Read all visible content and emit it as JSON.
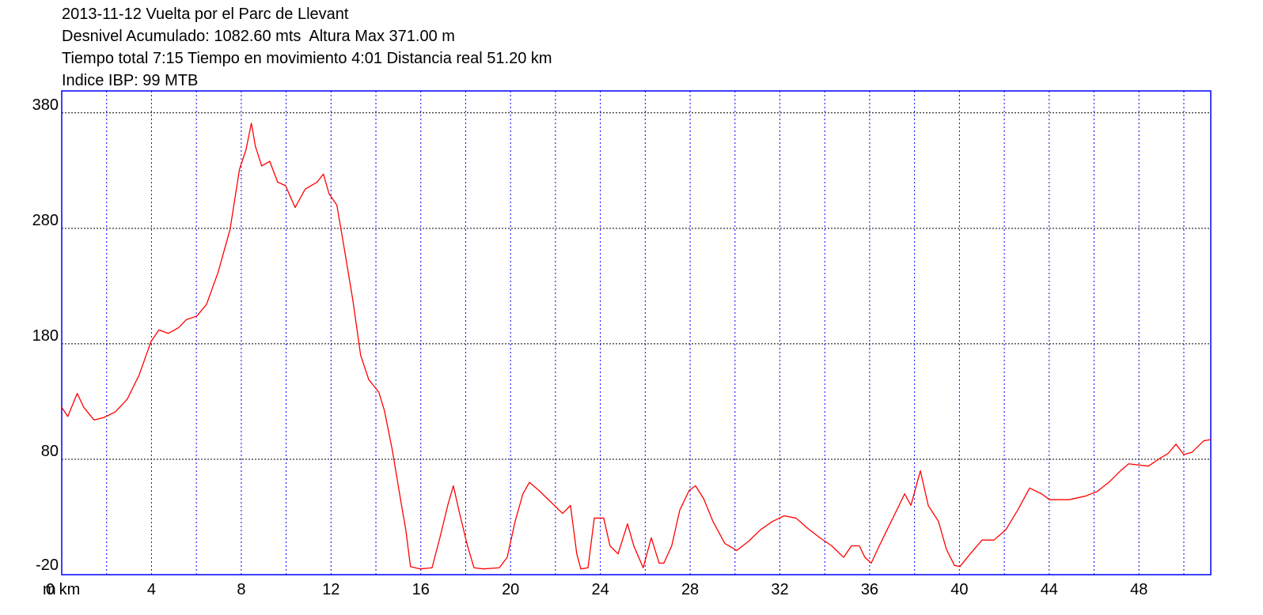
{
  "chart_data": {
    "type": "line",
    "title": "2013-11-12 Vuelta por el Parc de Llevant",
    "subtitle": [
      "Desnivel Acumulado: 1082.60 mts  Altura Max 371.00 m",
      "Tiempo total 7:15 Tiempo en movimiento 4:01 Distancia real 51.20 km",
      "Indice IBP: 99 MTB"
    ],
    "ylabel": "m",
    "x": [
      0,
      0.27,
      0.69,
      0.98,
      1.44,
      1.86,
      2.39,
      2.92,
      3.45,
      3.98,
      4.33,
      4.75,
      5.21,
      5.56,
      6.02,
      6.45,
      6.97,
      7.5,
      7.92,
      8.21,
      8.45,
      8.63,
      8.91,
      9.27,
      9.62,
      9.97,
      10.4,
      10.85,
      11.38,
      11.66,
      11.91,
      12.26,
      12.62,
      12.97,
      13.32,
      13.68,
      14.13,
      14.38,
      14.73,
      15.09,
      15.33,
      15.54,
      15.97,
      16.5,
      16.85,
      17.2,
      17.45,
      17.73,
      18.08,
      18.37,
      18.79,
      19.5,
      19.85,
      20.2,
      20.55,
      20.84,
      21.26,
      21.79,
      22.32,
      22.67,
      22.95,
      23.13,
      23.45,
      23.73,
      24.15,
      24.43,
      24.79,
      25.21,
      25.49,
      25.91,
      26.27,
      26.62,
      26.83,
      27.18,
      27.54,
      27.96,
      28.24,
      28.6,
      29.02,
      29.55,
      30.08,
      30.61,
      31.14,
      31.66,
      32.19,
      32.72,
      33.25,
      33.78,
      34.31,
      34.84,
      35.19,
      35.54,
      35.79,
      36.07,
      36.43,
      36.78,
      37.31,
      37.56,
      37.84,
      38.26,
      38.61,
      39.07,
      39.42,
      39.78,
      40.02,
      40.48,
      41.01,
      41.54,
      42.07,
      42.6,
      43.13,
      43.66,
      44.01,
      44.89,
      45.6,
      46.13,
      46.66,
      47.18,
      47.54,
      48.42,
      48.95,
      49.3,
      49.65,
      50.0,
      50.36,
      50.89,
      51.2
    ],
    "series": [
      {
        "color": "#ff0000",
        "values": [
          125,
          117,
          137,
          125,
          114,
          116,
          121,
          132,
          153,
          182,
          192,
          189,
          194,
          201,
          204,
          214,
          242,
          279,
          331,
          348,
          371,
          351,
          334,
          338,
          320,
          317,
          298,
          314,
          320,
          327,
          310,
          300,
          259,
          218,
          170,
          149,
          138,
          122,
          88,
          46,
          19,
          -13,
          -15,
          -14,
          12,
          40,
          57,
          33,
          5,
          -14,
          -15,
          -14,
          -5,
          26,
          50,
          60,
          53,
          43,
          33,
          40,
          -2,
          -15,
          -14,
          29,
          29,
          5,
          -2,
          24,
          5,
          -14,
          12,
          -10,
          -10,
          5,
          36,
          53,
          57,
          46,
          26,
          7,
          1,
          9,
          19,
          26,
          31,
          29,
          20,
          12,
          5,
          -5,
          5,
          5,
          -5,
          -10,
          5,
          19,
          40,
          50,
          40,
          70,
          40,
          26,
          2,
          -12,
          -13,
          -2,
          10,
          10,
          19,
          36,
          55,
          50,
          45,
          45,
          48,
          52,
          60,
          70,
          76,
          74,
          81,
          85,
          93,
          84,
          86,
          96,
          97
        ]
      }
    ],
    "xlim": [
      0,
      51.2
    ],
    "ylim": [
      -20,
      399
    ],
    "xticks": [
      {
        "value": 0,
        "label": "0 km"
      },
      4,
      8,
      12,
      16,
      20,
      24,
      28,
      32,
      36,
      40,
      44,
      48
    ],
    "xminorticks": [
      2,
      6,
      10,
      14,
      18,
      22,
      26,
      30,
      34,
      38,
      42,
      46,
      50
    ],
    "yticks": [
      -20,
      80,
      180,
      280,
      380
    ],
    "grid": true,
    "grid_color": "#0000ff",
    "frame_color": "#0000ff"
  }
}
